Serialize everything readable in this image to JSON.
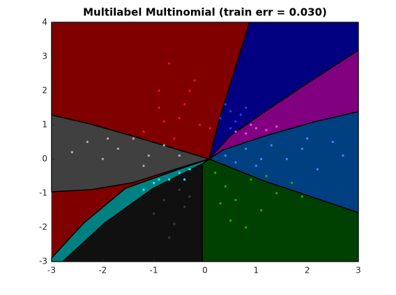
{
  "chart_data": {
    "type": "scatter",
    "title": "Multilabel Multinomial (train err = 0.030)",
    "xlim": [
      -3,
      3
    ],
    "ylim": [
      -3,
      4
    ],
    "xticks": [
      -3,
      -2,
      -1,
      0,
      1,
      2,
      3
    ],
    "yticks": [
      -3,
      -2,
      -1,
      0,
      1,
      2,
      3,
      4
    ],
    "series": [
      {
        "color": "#ff1010",
        "x": [
          -1.2,
          -0.9,
          -0.7,
          -0.5,
          -0.3,
          -0.1,
          0.1,
          -0.6,
          -0.4,
          -0.8,
          -0.2,
          -0.9
        ],
        "y": [
          0.8,
          1.5,
          2.8,
          1.2,
          2.0,
          1.0,
          0.9,
          0.6,
          1.6,
          1.1,
          2.3,
          2.0
        ]
      },
      {
        "color": "#2040ff",
        "x": [
          0.4,
          0.5,
          0.6,
          0.7,
          0.8,
          0.5,
          0.3,
          0.9
        ],
        "y": [
          1.6,
          1.4,
          1.1,
          1.3,
          1.5,
          0.9,
          1.2,
          1.0
        ]
      },
      {
        "color": "#ff40ff",
        "x": [
          0.6,
          0.8,
          1.0,
          1.2,
          1.4,
          0.9
        ],
        "y": [
          0.8,
          0.75,
          0.9,
          0.85,
          0.95,
          1.0
        ]
      },
      {
        "color": "#3a8cff",
        "x": [
          0.4,
          0.8,
          1.0,
          1.3,
          1.6,
          1.9,
          2.2,
          2.5,
          2.7,
          1.1,
          0.6,
          2.0
        ],
        "y": [
          0.1,
          0.3,
          -0.2,
          0.4,
          0.0,
          0.3,
          -0.3,
          0.5,
          0.1,
          0.0,
          -0.1,
          0.6
        ]
      },
      {
        "color": "#b0b0b0",
        "x": [
          -2.6,
          -2.3,
          -2.0,
          -1.7,
          -1.4,
          -1.1,
          -0.8,
          -0.5,
          -1.9,
          -1.2
        ],
        "y": [
          0.2,
          0.5,
          0.0,
          0.3,
          0.6,
          0.1,
          0.4,
          0.1,
          0.6,
          -0.2
        ]
      },
      {
        "color": "#00ffff",
        "x": [
          -1.2,
          -1.0,
          -0.9,
          -0.7,
          -0.5,
          -0.4,
          -0.3
        ],
        "y": [
          -0.9,
          -0.7,
          -0.6,
          -0.6,
          -0.4,
          -0.6,
          -0.3
        ]
      },
      {
        "color": "#3a3a3a",
        "x": [
          -1.0,
          -0.8,
          -0.6,
          -0.4,
          -0.3,
          -0.7,
          -0.5
        ],
        "y": [
          -1.6,
          -1.2,
          -1.9,
          -1.4,
          -1.1,
          -2.3,
          -0.9
        ]
      },
      {
        "color": "#00c000",
        "x": [
          0.2,
          0.4,
          0.6,
          0.9,
          1.1,
          1.4,
          1.7,
          0.5,
          0.8,
          1.2,
          0.3,
          1.9
        ],
        "y": [
          -0.4,
          -0.8,
          -1.2,
          -0.6,
          -1.5,
          -1.0,
          -0.7,
          -1.8,
          -2.0,
          -0.5,
          -1.3,
          -1.1
        ]
      }
    ]
  }
}
